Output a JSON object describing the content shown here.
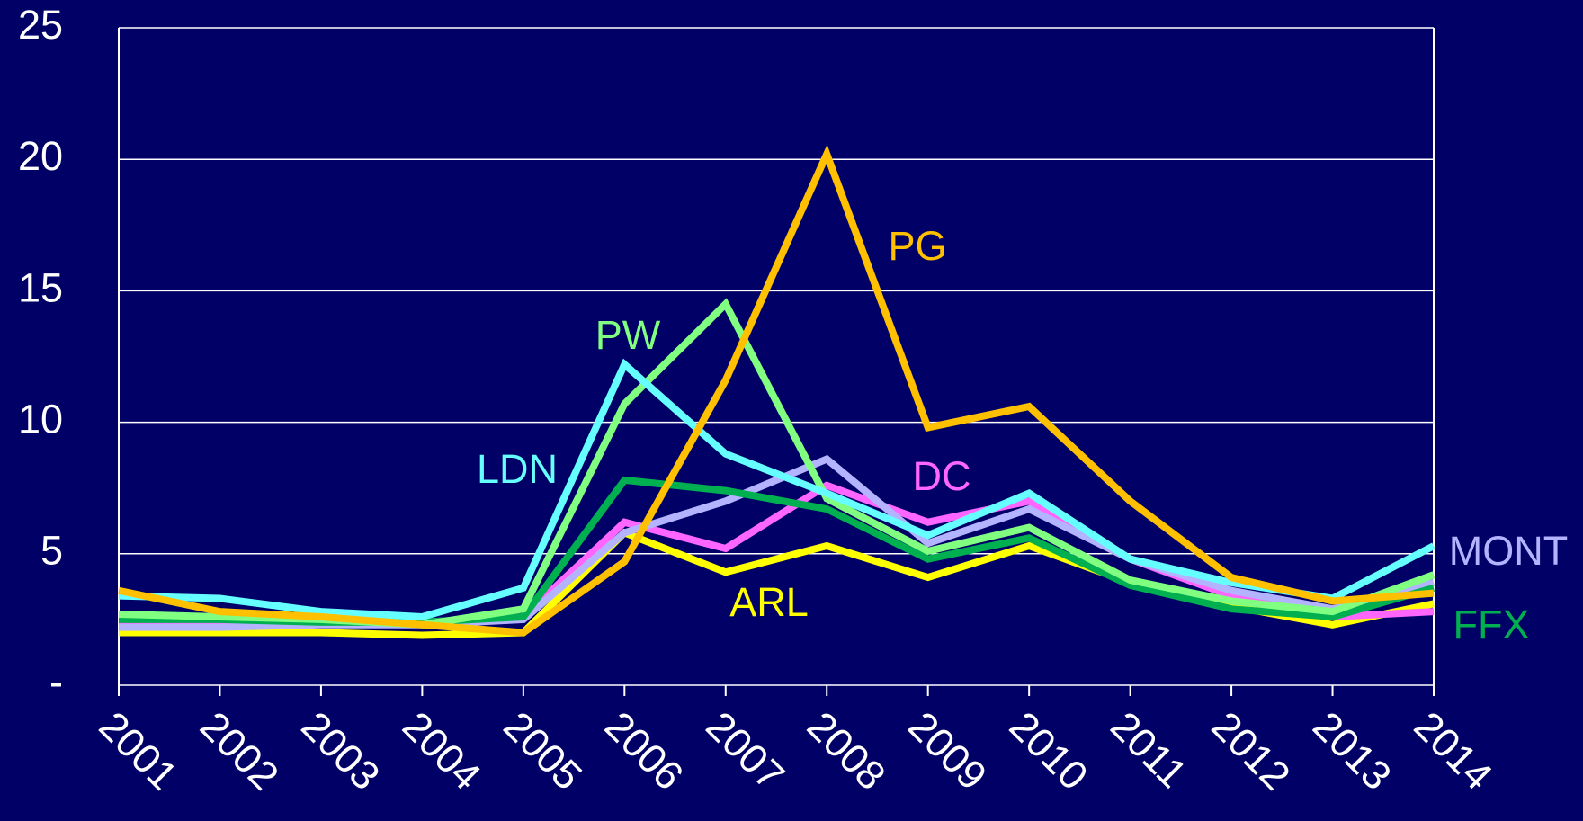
{
  "chart_data": {
    "type": "line",
    "categories": [
      "2001",
      "2002",
      "2003",
      "2004",
      "2005",
      "2006",
      "2007",
      "2008",
      "2009",
      "2010",
      "2011",
      "2012",
      "2013",
      "2014"
    ],
    "series": [
      {
        "name": "ARL",
        "color": "#ffff00",
        "values": [
          2.0,
          2.0,
          2.0,
          1.9,
          2.0,
          5.8,
          4.3,
          5.3,
          4.1,
          5.3,
          3.9,
          3.0,
          2.3,
          3.1
        ]
      },
      {
        "name": "DC",
        "color": "#ff66ff",
        "values": [
          2.3,
          2.3,
          2.4,
          2.4,
          2.6,
          6.2,
          5.2,
          7.6,
          6.2,
          7.0,
          4.8,
          3.4,
          2.6,
          2.8
        ]
      },
      {
        "name": "MONT",
        "color": "#b3b3ff",
        "values": [
          2.2,
          2.2,
          2.3,
          2.3,
          2.5,
          5.8,
          7.0,
          8.6,
          5.4,
          6.7,
          4.8,
          3.6,
          2.9,
          3.9
        ]
      },
      {
        "name": "FFX",
        "color": "#00b050",
        "values": [
          2.5,
          2.5,
          2.4,
          2.4,
          2.6,
          7.8,
          7.4,
          6.7,
          4.8,
          5.6,
          3.8,
          2.9,
          2.6,
          3.7
        ]
      },
      {
        "name": "PW",
        "color": "#80ff80",
        "values": [
          2.7,
          2.6,
          2.5,
          2.3,
          2.9,
          10.7,
          14.5,
          7.1,
          5.1,
          6.0,
          4.0,
          3.2,
          2.8,
          4.2
        ]
      },
      {
        "name": "LDN",
        "color": "#66ffff",
        "values": [
          3.4,
          3.3,
          2.8,
          2.6,
          3.7,
          12.2,
          8.8,
          7.3,
          5.7,
          7.3,
          4.8,
          3.9,
          3.3,
          5.3
        ]
      },
      {
        "name": "PG",
        "color": "#ffc000",
        "values": [
          3.6,
          2.8,
          2.6,
          2.3,
          2.0,
          4.7,
          11.6,
          20.2,
          9.8,
          10.6,
          7.0,
          4.1,
          3.2,
          3.5
        ]
      }
    ],
    "ylim": [
      0,
      25
    ],
    "yticks": [
      {
        "value": 0,
        "label": "-"
      },
      5,
      10,
      15,
      20,
      25
    ],
    "grid": true
  }
}
